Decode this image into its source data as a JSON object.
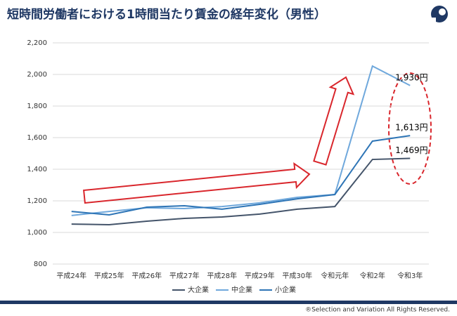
{
  "chart_data": {
    "type": "line",
    "title": "短時間労働者における1時間当たり賃金の経年変化（男性）",
    "categories": [
      "平成24年",
      "平成25年",
      "平成26年",
      "平成27年",
      "平成28年",
      "平成29年",
      "平成30年",
      "令和元年",
      "令和2年",
      "令和3年"
    ],
    "series": [
      {
        "name": "大企業",
        "color": "#44546a",
        "values": [
          1053,
          1049,
          1071,
          1089,
          1098,
          1116,
          1147,
          1164,
          1462,
          1469
        ],
        "value_labels": [
          null,
          null,
          null,
          null,
          null,
          null,
          null,
          null,
          null,
          "1,469円"
        ]
      },
      {
        "name": "中企業",
        "color": "#6fa8dc",
        "values": [
          1107,
          1133,
          1156,
          1151,
          1164,
          1187,
          1222,
          1240,
          2053,
          1930
        ],
        "value_labels": [
          null,
          null,
          null,
          null,
          null,
          null,
          null,
          null,
          null,
          "1,930円"
        ]
      },
      {
        "name": "小企業",
        "color": "#2e75b6",
        "values": [
          1133,
          1111,
          1160,
          1169,
          1147,
          1178,
          1213,
          1240,
          1578,
          1613
        ],
        "value_labels": [
          null,
          null,
          null,
          null,
          null,
          null,
          null,
          null,
          null,
          "1,613円"
        ]
      }
    ],
    "ylim": [
      800,
      2200
    ],
    "yticks": [
      800,
      {
        "value": 1000,
        "label": "1,000"
      },
      {
        "value": 1200,
        "label": "1,200"
      },
      {
        "value": 1400,
        "label": "1,400"
      },
      {
        "value": 1600,
        "label": "1,600"
      },
      {
        "value": 1800,
        "label": "1,800"
      },
      {
        "value": 2000,
        "label": "2,000"
      },
      {
        "value": 2200,
        "label": "2,200"
      }
    ],
    "grid": true,
    "legend": "bottom"
  },
  "footer": "®Selection and Variation All Rights Reserved."
}
